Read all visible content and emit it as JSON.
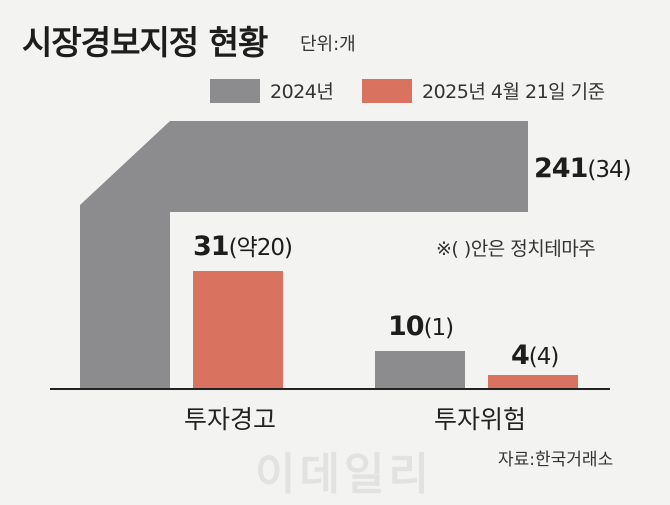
{
  "title": "시장경보지정 현황",
  "unit": "단위:개",
  "note": "※(  )안은 정치테마주",
  "source": "자료:한국거래소",
  "watermark": "이데일리",
  "colors": {
    "series_2024": "#8c8c8f",
    "series_2025": "#d9725f",
    "axis": "#222222",
    "background": "#f3f3f1"
  },
  "chart_data": {
    "type": "bar",
    "title": "시장경보지정 현황",
    "unit": "단위:개",
    "categories": [
      "투자경고",
      "투자위험"
    ],
    "series": [
      {
        "name": "2024년",
        "values": [
          241,
          10
        ],
        "labels": [
          "241",
          "10"
        ],
        "sublabels": [
          "(34)",
          "(1)"
        ]
      },
      {
        "name": "2025년 4월 21일 기준",
        "values": [
          31,
          4
        ],
        "labels": [
          "31",
          "4"
        ],
        "sublabels": [
          "(약20)",
          "(4)"
        ]
      }
    ],
    "legend_position": "top-right",
    "note": "※(  )안은 정치테마주",
    "source": "자료:한국거래소"
  }
}
